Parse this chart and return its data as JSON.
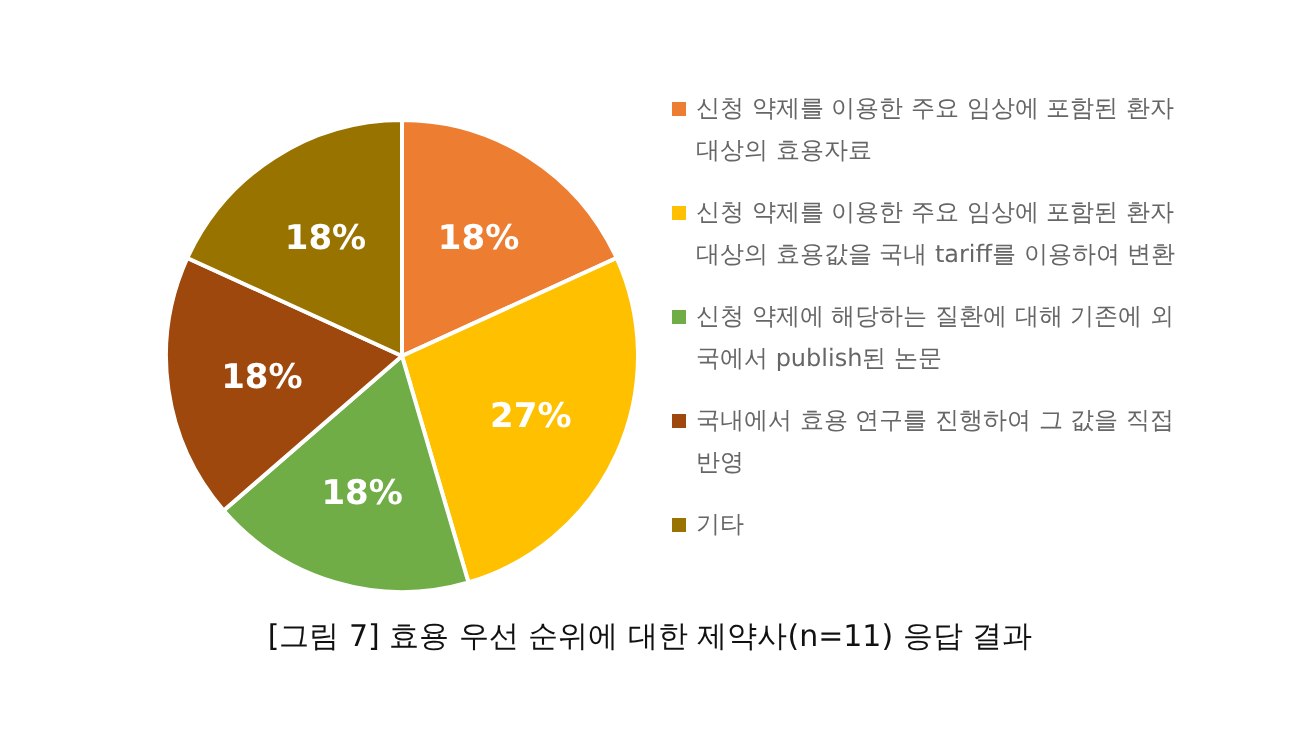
{
  "chart_data": {
    "type": "pie",
    "title": "[그림 7] 효용 우선 순위에 대한 제약사(n=11) 응답 결과",
    "categories": [
      "신청 약제를 이용한 주요 임상에 포함된 환자 대상의 효용자료",
      "신청 약제를 이용한 주요 임상에 포함된 환자 대상의 효용값을 국내 tariff를 이용하여 변환",
      "신청 약제에 해당하는 질환에 대해 기존에 외국에서 publish된 논문",
      "국내에서 효용 연구를 진행하여 그 값을 직접 반영",
      "기타"
    ],
    "values": [
      18,
      27,
      18,
      18,
      18
    ],
    "colors": [
      "#ed7d31",
      "#ffc000",
      "#70ad47",
      "#9e480e",
      "#997300"
    ],
    "value_labels": [
      "18%",
      "27%",
      "18%",
      "18%",
      "18%"
    ],
    "legend": "right"
  }
}
